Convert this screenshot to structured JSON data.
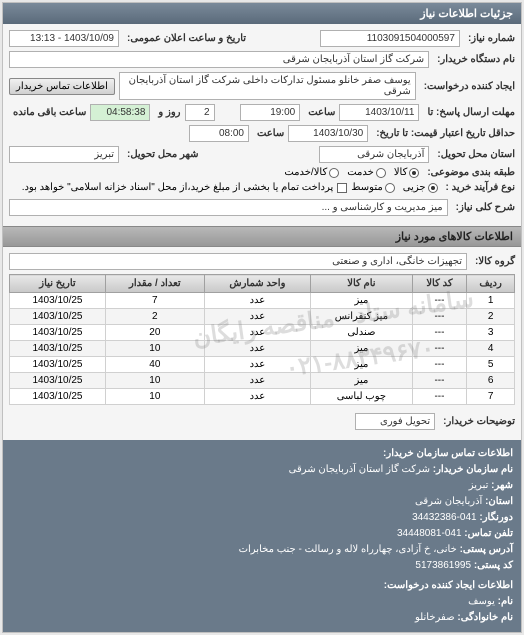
{
  "panel": {
    "title": "جزئیات اطلاعات نیاز"
  },
  "header": {
    "req_no_label": "شماره نیاز:",
    "req_no": "1103091504000597",
    "announce_label": "تاریخ و ساعت اعلان عمومی:",
    "announce_value": "1403/10/09 - 13:13",
    "buyer_label": "نام دستگاه خریدار:",
    "buyer_value": "شرکت گاز استان آذربایجان شرقی",
    "creator_label": "ایجاد کننده درخواست:",
    "creator_value": "یوسف صفر خانلو  مسئول تدارکات داخلی  شرکت گاز استان آذربایجان شرقی",
    "contact_btn": "اطلاعات تماس خریدار",
    "deadline_reply_label": "مهلت ارسال پاسخ: تا",
    "deadline_reply_date": "1403/10/11",
    "saat_label": "ساعت",
    "deadline_reply_time": "19:00",
    "remaining_days": "2",
    "roz_va": "روز و",
    "remaining_time": "04:58:38",
    "remaining_suffix": "ساعت باقی مانده",
    "validity_label": "حداقل تاریخ اعتبار قیمت: تا تاریخ:",
    "validity_date": "1403/10/30",
    "validity_time": "08:00",
    "province_label": "استان محل تحویل:",
    "province_value": "آذربایجان شرقی",
    "city_label": "شهر محل تحویل:",
    "city_value": "تبریز",
    "category_label": "طبقه بندی موضوعی:",
    "radio_kala": "کالا",
    "radio_khadamat": "خدمت",
    "radio_kalakhadamat": "کالا/خدمت",
    "process_label": "نوع فرآیند خرید :",
    "radio_jozi": "جزیی",
    "radio_motevaset": "متوسط",
    "process_note": "پرداخت تمام یا بخشی از مبلغ خرید،از محل \"اسناد خزانه اسلامی\" خواهد بود.",
    "desc_label": "شرح کلی نیاز:",
    "desc_value": "میز مدیریت و کارشناسی و ..."
  },
  "items_section": {
    "title": "اطلاعات کالاهای مورد نیاز",
    "group_label": "گروه کالا:",
    "group_value": "تجهیزات خانگی، اداری و صنعتی"
  },
  "table": {
    "columns": [
      "ردیف",
      "کد کالا",
      "نام کالا",
      "واحد شمارش",
      "تعداد / مقدار",
      "تاریخ نیاز"
    ],
    "rows": [
      [
        "1",
        "---",
        "میز",
        "عدد",
        "7",
        "1403/10/25"
      ],
      [
        "2",
        "---",
        "میز کنفرانس",
        "عدد",
        "2",
        "1403/10/25"
      ],
      [
        "3",
        "---",
        "صندلی",
        "عدد",
        "20",
        "1403/10/25"
      ],
      [
        "4",
        "---",
        "میز",
        "عدد",
        "10",
        "1403/10/25"
      ],
      [
        "5",
        "---",
        "میز",
        "عدد",
        "40",
        "1403/10/25"
      ],
      [
        "6",
        "---",
        "میز",
        "عدد",
        "10",
        "1403/10/25"
      ],
      [
        "7",
        "---",
        "چوب لباسی",
        "عدد",
        "10",
        "1403/10/25"
      ]
    ]
  },
  "watermark": {
    "line1": "سامانه ستاد - مناقصه رایگان",
    "line2": "۰۲۱-۸۸۳۴۹۶۷۰"
  },
  "notes": {
    "label": "توضیحات خریدار:",
    "value": "تحویل فوری"
  },
  "contact": {
    "title": "اطلاعات تماس سازمان خریدار:",
    "org_label": "نام سازمان خریدار:",
    "org_value": "شرکت گاز استان آذربایجان شرقی",
    "city_label": "شهر:",
    "city_value": "تبریز",
    "province_label": "استان:",
    "province_value": "آذربایجان شرقی",
    "fax_label": "دورنگار:",
    "fax_value": "041-34432386",
    "phone_label": "تلفن تماس:",
    "phone_value": "041-34448081",
    "address_label": "آدرس پستی:",
    "address_value": "خانی، خ آزادی، چهارراه لاله و رسالت - جنب مخابرات",
    "postal_label": "کد پستی:",
    "postal_value": "5173861995",
    "creator_title": "اطلاعات ایجاد کننده درخواست:",
    "name_label": "نام:",
    "name_value": "یوسف",
    "family_label": "نام خانوادگی:",
    "family_value": "صفرخانلو"
  }
}
